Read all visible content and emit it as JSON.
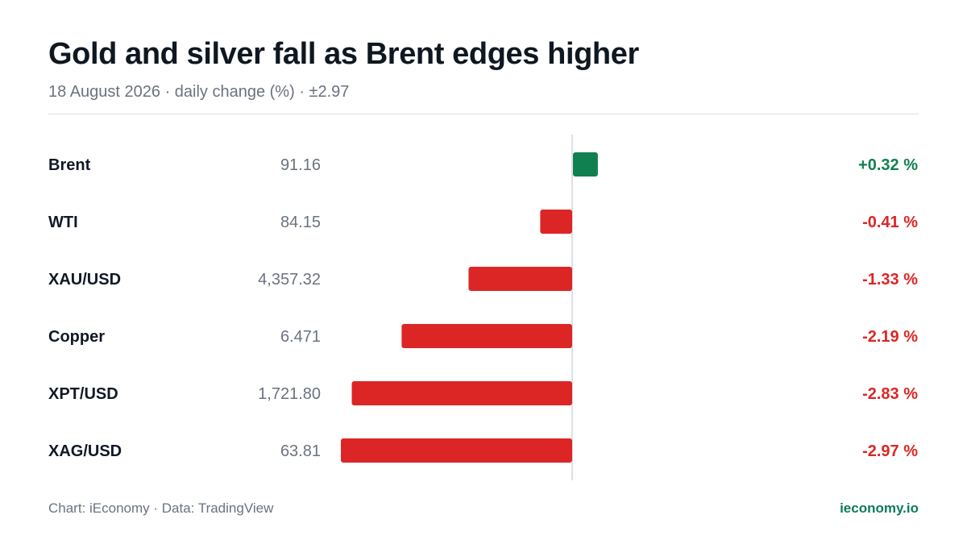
{
  "header": {
    "title": "Gold and silver fall as Brent edges higher",
    "subtitle": "18 August 2026 · daily change (%) · ±2.97"
  },
  "footer": {
    "source": "Chart: iEconomy · Data: TradingView",
    "brand": "ieconomy.io"
  },
  "colors": {
    "positive": "#118050",
    "negative": "#dc2626",
    "axis": "#dcdfe3",
    "price_text": "#6b7280",
    "label_text": "#111827"
  },
  "chart_data": {
    "type": "bar",
    "orientation": "horizontal",
    "unit": "%",
    "xlim": [
      -2.97,
      2.97
    ],
    "categories": [
      "Brent",
      "WTI",
      "XAU/USD",
      "Copper",
      "XPT/USD",
      "XAG/USD"
    ],
    "prices": [
      "91.16",
      "84.15",
      "4,357.32",
      "6.471",
      "1,721.80",
      "63.81"
    ],
    "values": [
      0.32,
      -0.41,
      -1.33,
      -2.19,
      -2.83,
      -2.97
    ],
    "value_labels": [
      "+0.32 %",
      "-0.41 %",
      "-1.33 %",
      "-2.19 %",
      "-2.83 %",
      "-2.97 %"
    ]
  }
}
